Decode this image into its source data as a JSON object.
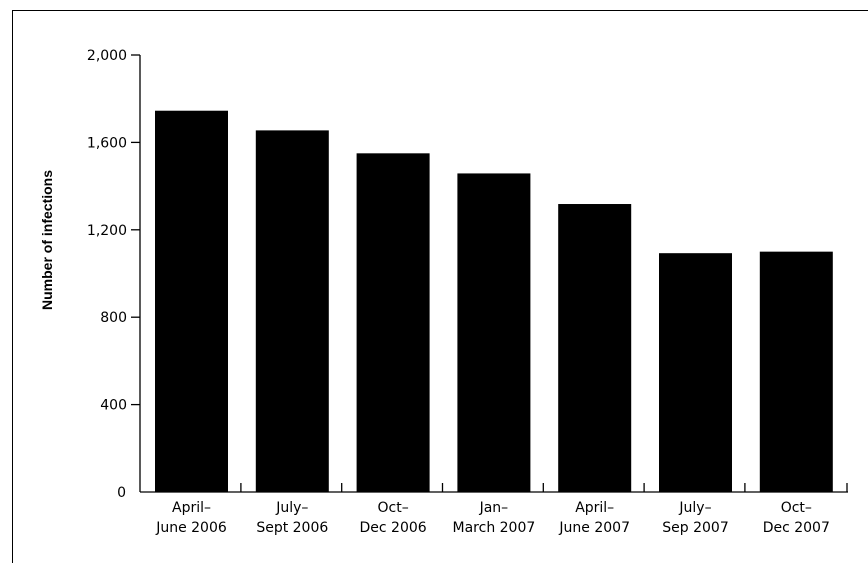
{
  "chart_data": {
    "type": "bar",
    "title": "",
    "xlabel": "",
    "ylabel": "Number of infections",
    "ylim": [
      0,
      2000
    ],
    "yticks": [
      0,
      400,
      800,
      1200,
      1600,
      2000
    ],
    "ytick_labels": [
      "0",
      "400",
      "800",
      "1,200",
      "1,600",
      "2,000"
    ],
    "grid": false,
    "categories": [
      [
        "April–",
        "June 2006"
      ],
      [
        "July–",
        "Sept 2006"
      ],
      [
        "Oct–",
        "Dec 2006"
      ],
      [
        "Jan–",
        "March 2007"
      ],
      [
        "April–",
        "June 2007"
      ],
      [
        "July–",
        "Sep 2007"
      ],
      [
        "Oct–",
        "Dec 2007"
      ]
    ],
    "values": [
      1745,
      1655,
      1550,
      1458,
      1318,
      1093,
      1100
    ],
    "bar_color": "#000000"
  }
}
